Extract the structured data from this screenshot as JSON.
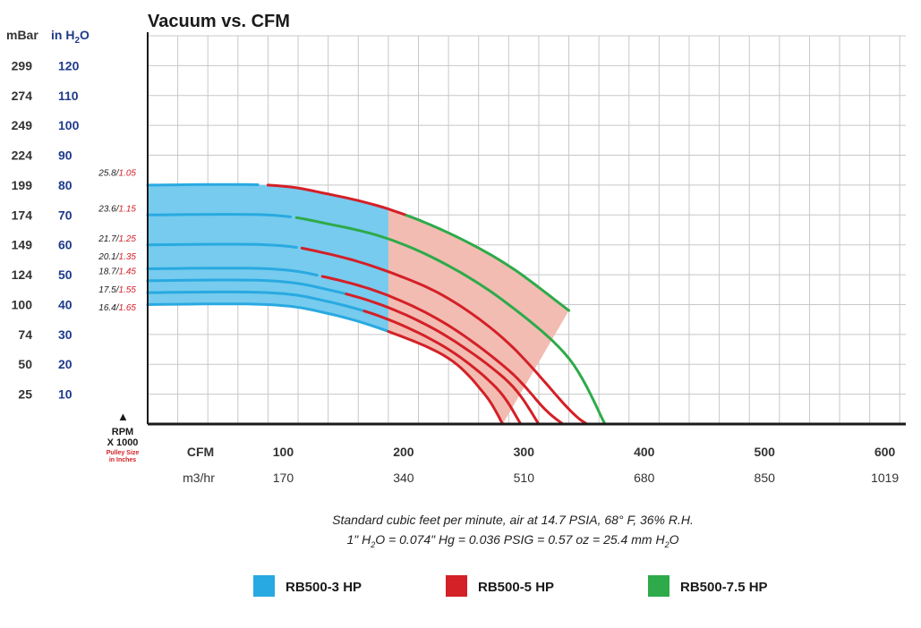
{
  "chart_data": {
    "type": "line",
    "title": "Vacuum vs. CFM",
    "left_axis": {
      "header_mbar": "mBar",
      "header_inh2o_main": "in H",
      "header_inh2o_sub": "2",
      "header_inh2o_tail": "O",
      "mbar_ticks": [
        "299",
        "274",
        "249",
        "224",
        "199",
        "174",
        "149",
        "124",
        "100",
        "74",
        "50",
        "25"
      ],
      "inh2o_ticks": [
        "120",
        "110",
        "100",
        "90",
        "80",
        "70",
        "60",
        "50",
        "40",
        "30",
        "20",
        "10"
      ],
      "ylim": [
        0,
        130
      ]
    },
    "x_axis": {
      "cfm_label": "CFM",
      "cfm_ticks": [
        "100",
        "200",
        "300",
        "400",
        "500",
        "600"
      ],
      "m3hr_label": "m3/hr",
      "m3hr_ticks": [
        "170",
        "340",
        "510",
        "680",
        "850",
        "1019"
      ],
      "xlim": [
        0,
        630
      ]
    },
    "rpm_label": {
      "marker": "▲",
      "line1": "RPM",
      "line2": "X 1000",
      "line3": "Pulley Size",
      "line4": "in Inches"
    },
    "curve_labels": [
      {
        "rpm": "25.8",
        "pulley": "1.05",
        "y": 84
      },
      {
        "rpm": "23.6",
        "pulley": "1.15",
        "y": 72
      },
      {
        "rpm": "21.7",
        "pulley": "1.25",
        "y": 62
      },
      {
        "rpm": "20.1",
        "pulley": "1.35",
        "y": 56
      },
      {
        "rpm": "18.7",
        "pulley": "1.45",
        "y": 51
      },
      {
        "rpm": "17.5",
        "pulley": "1.55",
        "y": 45
      },
      {
        "rpm": "16.4",
        "pulley": "1.65",
        "y": 39
      }
    ],
    "series": [
      {
        "name": "RB500-3 HP",
        "color": "#29a9e1",
        "fill": "#6fcbf1"
      },
      {
        "name": "RB500-5 HP",
        "color": "#d42027",
        "fill": "#f5b7ae"
      },
      {
        "name": "RB500-7.5 HP",
        "color": "#2eaa4a",
        "fill": "#cde9c8"
      }
    ],
    "curves": [
      {
        "top": 80,
        "points": [
          [
            0,
            80
          ],
          [
            100,
            80
          ],
          [
            150,
            77
          ],
          [
            200,
            72
          ],
          [
            250,
            64
          ],
          [
            300,
            53
          ],
          [
            350,
            38
          ]
        ],
        "segments": [
          [
            0,
            97,
            "#29a9e1"
          ],
          [
            97,
            215,
            "#d42027"
          ],
          [
            215,
            350,
            "#2eaa4a"
          ]
        ]
      },
      {
        "top": 70,
        "points": [
          [
            0,
            70
          ],
          [
            100,
            70
          ],
          [
            150,
            67
          ],
          [
            200,
            62
          ],
          [
            250,
            53
          ],
          [
            300,
            40
          ],
          [
            350,
            22
          ],
          [
            380,
            0
          ]
        ],
        "segments": [
          [
            0,
            120,
            "#29a9e1"
          ],
          [
            120,
            400,
            "#2eaa4a"
          ]
        ]
      },
      {
        "top": 60,
        "points": [
          [
            0,
            60
          ],
          [
            100,
            60
          ],
          [
            150,
            57
          ],
          [
            200,
            51
          ],
          [
            250,
            42
          ],
          [
            300,
            27
          ],
          [
            350,
            5
          ],
          [
            365,
            0
          ]
        ],
        "segments": [
          [
            0,
            125,
            "#29a9e1"
          ],
          [
            125,
            380,
            "#d42027"
          ]
        ]
      },
      {
        "top": 52,
        "points": [
          [
            0,
            52
          ],
          [
            100,
            52
          ],
          [
            150,
            49
          ],
          [
            200,
            43
          ],
          [
            250,
            33
          ],
          [
            300,
            18
          ],
          [
            330,
            5
          ],
          [
            345,
            0
          ]
        ],
        "segments": [
          [
            0,
            145,
            "#29a9e1"
          ],
          [
            145,
            380,
            "#d42027"
          ]
        ]
      },
      {
        "top": 48,
        "points": [
          [
            0,
            48
          ],
          [
            100,
            48
          ],
          [
            150,
            45
          ],
          [
            200,
            39
          ],
          [
            250,
            29
          ],
          [
            300,
            14
          ],
          [
            325,
            0
          ]
        ],
        "segments": [
          [
            0,
            165,
            "#29a9e1"
          ],
          [
            165,
            380,
            "#d42027"
          ]
        ]
      },
      {
        "top": 44,
        "points": [
          [
            0,
            44
          ],
          [
            100,
            44
          ],
          [
            150,
            41
          ],
          [
            200,
            35
          ],
          [
            250,
            25
          ],
          [
            290,
            12
          ],
          [
            310,
            0
          ]
        ],
        "segments": [
          [
            0,
            180,
            "#29a9e1"
          ],
          [
            180,
            380,
            "#d42027"
          ]
        ]
      },
      {
        "top": 40,
        "points": [
          [
            0,
            40
          ],
          [
            100,
            40
          ],
          [
            150,
            37
          ],
          [
            200,
            31
          ],
          [
            250,
            22
          ],
          [
            280,
            10
          ],
          [
            295,
            0
          ]
        ],
        "segments": [
          [
            0,
            200,
            "#29a9e1"
          ],
          [
            200,
            380,
            "#d42027"
          ]
        ]
      }
    ],
    "notes": {
      "line1": "Standard cubic feet per minute, air at 14.7 PSIA, 68° F, 36% R.H.",
      "line2_a": "1\" H",
      "line2_sub1": "2",
      "line2_b": "O = 0.074\" Hg = 0.036 PSIG = 0.57 oz = 25.4 mm H",
      "line2_sub2": "2",
      "line2_c": "O"
    },
    "grid": true,
    "legend_position": "bottom"
  }
}
